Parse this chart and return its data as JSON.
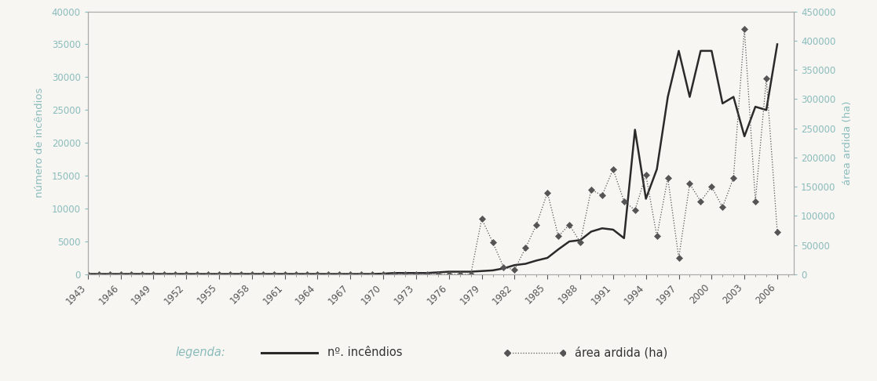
{
  "ylabel_left": "número de incêndios",
  "ylabel_right": "área ardida (ha)",
  "legend_label": "legenda:",
  "legend_fires": "nº. incêndios",
  "legend_area": "área ardida (ha)",
  "ylim_left": [
    0,
    40000
  ],
  "ylim_right": [
    0,
    450000
  ],
  "left_color": "#8abcbc",
  "right_color": "#8abcbc",
  "line_color": "#2a2a2a",
  "dot_line_color": "#555555",
  "background_color": "#f8f6f2",
  "years": [
    1943,
    1944,
    1945,
    1946,
    1947,
    1948,
    1949,
    1950,
    1951,
    1952,
    1953,
    1954,
    1955,
    1956,
    1957,
    1958,
    1959,
    1960,
    1961,
    1962,
    1963,
    1964,
    1965,
    1966,
    1967,
    1968,
    1969,
    1970,
    1971,
    1972,
    1973,
    1974,
    1975,
    1976,
    1977,
    1978,
    1979,
    1980,
    1981,
    1982,
    1983,
    1984,
    1985,
    1986,
    1987,
    1988,
    1989,
    1990,
    1991,
    1992,
    1993,
    1994,
    1995,
    1996,
    1997,
    1998,
    1999,
    2000,
    2001,
    2002,
    2003,
    2004,
    2005,
    2006
  ],
  "fires": [
    50,
    50,
    50,
    50,
    50,
    50,
    50,
    50,
    50,
    50,
    50,
    50,
    50,
    50,
    50,
    50,
    50,
    50,
    50,
    50,
    50,
    50,
    50,
    50,
    50,
    50,
    50,
    100,
    200,
    200,
    200,
    200,
    300,
    400,
    400,
    400,
    500,
    600,
    900,
    1400,
    1600,
    2100,
    2500,
    3800,
    5000,
    5200,
    6500,
    7000,
    6800,
    5500,
    22000,
    11500,
    16000,
    27000,
    34000,
    27000,
    34000,
    34000,
    26000,
    27000,
    21000,
    25500,
    25000,
    35000
  ],
  "area": [
    0,
    0,
    0,
    0,
    0,
    0,
    0,
    0,
    0,
    0,
    0,
    0,
    0,
    0,
    0,
    0,
    0,
    0,
    0,
    0,
    0,
    0,
    0,
    0,
    0,
    0,
    0,
    0,
    0,
    0,
    0,
    0,
    0,
    0,
    0,
    0,
    95000,
    55000,
    12000,
    8000,
    45000,
    85000,
    140000,
    65000,
    85000,
    55000,
    145000,
    135000,
    180000,
    125000,
    110000,
    170000,
    65000,
    165000,
    28000,
    155000,
    125000,
    150000,
    115000,
    165000,
    420000,
    125000,
    335000,
    73000
  ],
  "yticks_left": [
    0,
    5000,
    10000,
    15000,
    20000,
    25000,
    30000,
    35000,
    40000
  ],
  "yticks_right": [
    0,
    50000,
    100000,
    150000,
    200000,
    250000,
    300000,
    350000,
    400000,
    450000
  ],
  "xtick_years": [
    1943,
    1946,
    1949,
    1952,
    1955,
    1958,
    1961,
    1964,
    1967,
    1970,
    1973,
    1976,
    1979,
    1982,
    1985,
    1988,
    1991,
    1994,
    1997,
    2000,
    2003,
    2006
  ]
}
